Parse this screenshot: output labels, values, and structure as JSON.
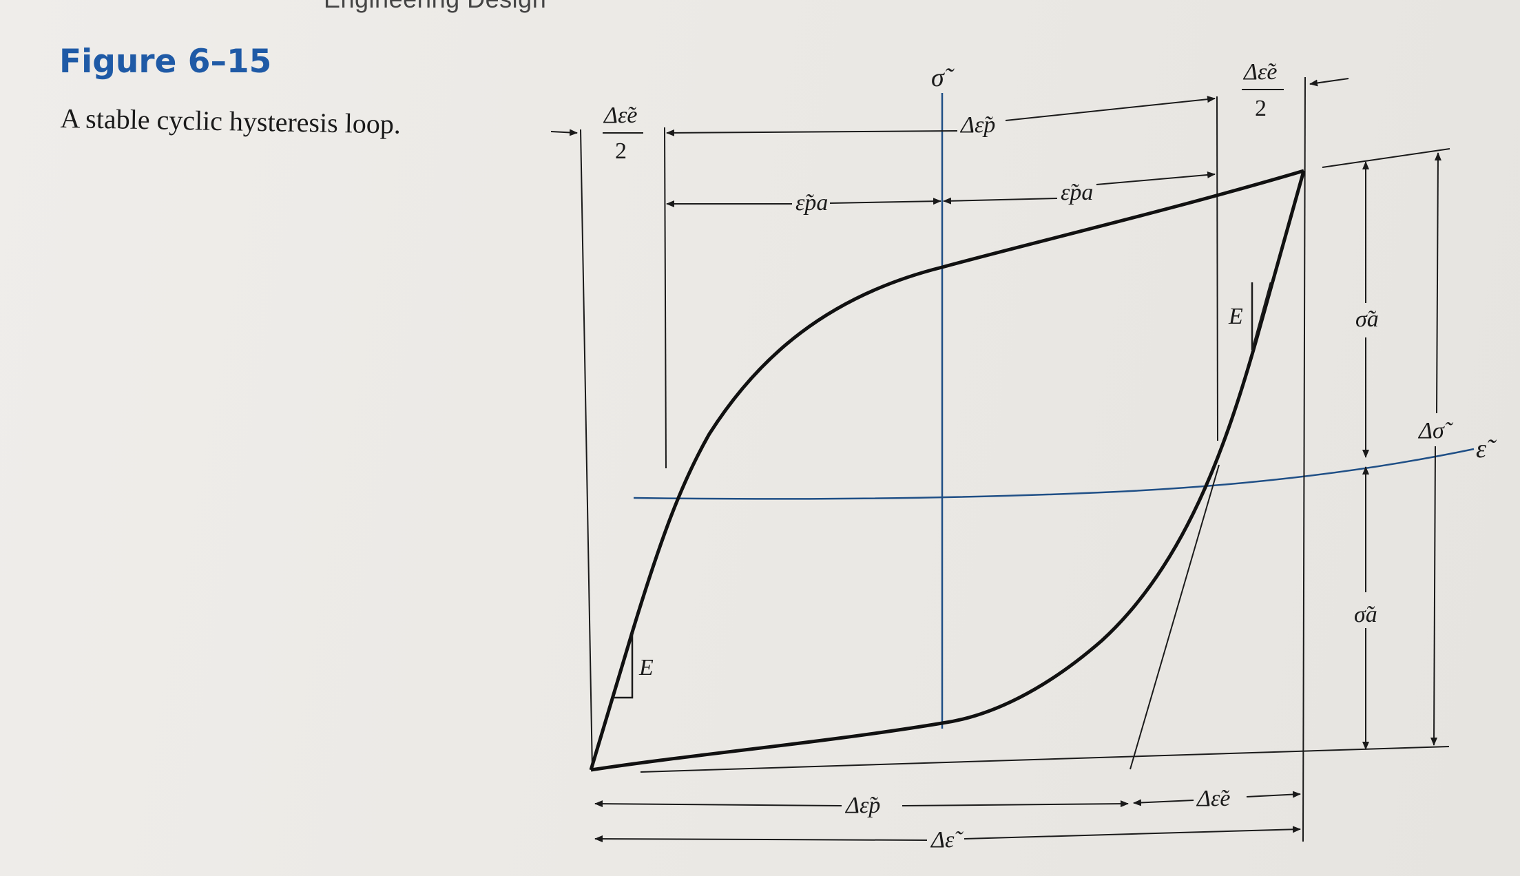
{
  "header": {
    "book_title_fragment": "Engineering Design"
  },
  "figure": {
    "number": "Figure 6–15",
    "caption": "A stable cyclic hysteresis loop."
  },
  "labels": {
    "stress_axis": "σ̃",
    "strain_axis": "ε̃",
    "half_elastic_strain_range_left": {
      "numerator": "Δε̃e",
      "denominator": "2"
    },
    "half_elastic_strain_range_right": {
      "numerator": "Δε̃e",
      "denominator": "2"
    },
    "plastic_strain_range_top": "Δε̃p",
    "plastic_strain_amplitude_left": "ε̃pa",
    "plastic_strain_amplitude_right": "ε̃pa",
    "modulus_upper": "E",
    "modulus_lower": "E",
    "stress_amplitude_upper": "σ̃a",
    "stress_amplitude_lower": "σ̃a",
    "stress_range": "Δσ̃",
    "plastic_strain_range_bottom": "Δε̃p",
    "elastic_strain_range_bottom": "Δε̃e",
    "total_strain_range": "Δε̃"
  },
  "colors": {
    "figure_label": "#1f5aa6",
    "axis_lines": "#1f4f86",
    "loop": "#111111"
  }
}
